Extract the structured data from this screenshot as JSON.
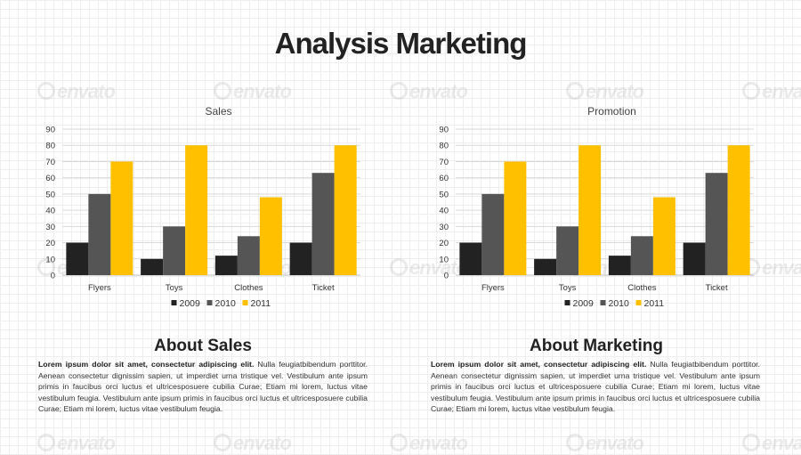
{
  "page": {
    "title": "Analysis Marketing",
    "watermark": "envato"
  },
  "colors": {
    "2009": "#222222",
    "2010": "#555555",
    "2011": "#FFC000",
    "gridline": "#d9d9d9",
    "axis": "#bfbfbf"
  },
  "chart_data": [
    {
      "type": "bar",
      "title": "Sales",
      "categories": [
        "Flyers",
        "Toys",
        "Clothes",
        "Ticket"
      ],
      "series": [
        {
          "name": "2009",
          "values": [
            20,
            10,
            12,
            20
          ]
        },
        {
          "name": "2010",
          "values": [
            50,
            30,
            24,
            63
          ]
        },
        {
          "name": "2011",
          "values": [
            70,
            80,
            48,
            80
          ]
        }
      ],
      "ylim": [
        0,
        90
      ],
      "yticks": [
        0,
        10,
        20,
        30,
        40,
        50,
        60,
        70,
        80,
        90
      ],
      "grid": true,
      "legend": "bottom"
    },
    {
      "type": "bar",
      "title": "Promotion",
      "categories": [
        "Flyers",
        "Toys",
        "Clothes",
        "Ticket"
      ],
      "series": [
        {
          "name": "2009",
          "values": [
            20,
            10,
            12,
            20
          ]
        },
        {
          "name": "2010",
          "values": [
            50,
            30,
            24,
            63
          ]
        },
        {
          "name": "2011",
          "values": [
            70,
            80,
            48,
            80
          ]
        }
      ],
      "ylim": [
        0,
        90
      ],
      "yticks": [
        0,
        10,
        20,
        30,
        40,
        50,
        60,
        70,
        80,
        90
      ],
      "grid": true,
      "legend": "bottom"
    }
  ],
  "sections": [
    {
      "heading": "About Sales",
      "lead": "Lorem ipsum dolor sit amet, consectetur adipiscing elit.",
      "body": " Nulla feugiatbibendum porttitor. Aenean consectetur dignissim sapien, ut imperdiet urna tristique vel. Vestibulum ante ipsum primis in faucibus orci luctus et ultricesposuere cubilia Curae; Etiam mi lorem, luctus vitae vestibulum feugia. Vestibulum ante ipsum primis in faucibus orci luctus et ultricesposuere cubilia Curae; Etiam mi lorem, luctus vitae vestibulum feugia."
    },
    {
      "heading": "About Marketing",
      "lead": "Lorem ipsum dolor sit amet, consectetur adipiscing elit.",
      "body": " Nulla feugiatbibendum porttitor. Aenean consectetur dignissim sapien, ut imperdiet urna tristique vel. Vestibulum ante ipsum primis in faucibus orci luctus et ultricesposuere cubilia Curae; Etiam mi lorem, luctus vitae vestibulum feugia. Vestibulum ante ipsum primis in faucibus orci luctus et ultricesposuere cubilia Curae; Etiam mi lorem, luctus vitae vestibulum feugia."
    }
  ]
}
